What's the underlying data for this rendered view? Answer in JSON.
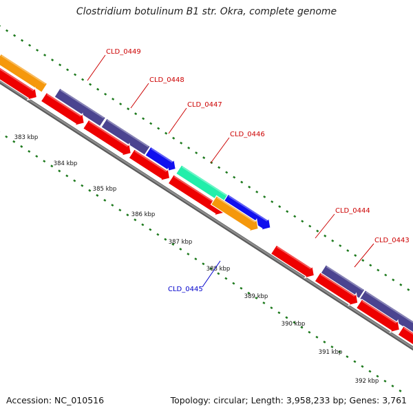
{
  "title": "Clostridium botulinum B1 str. Okra, complete genome",
  "footer": {
    "accession": "Accession: NC_010516",
    "stats": "Topology: circular; Length: 3,958,233 bp; Genes: 3,761"
  },
  "colors": {
    "red": "#ee0000",
    "navy": "#4b4490",
    "blue": "#1010ee",
    "green": "#22eeaa",
    "orange": "#f5980c",
    "backbone": "#8c8c8c",
    "tick": "#1e7a1e",
    "label_red": "#cc0000",
    "label_blue": "#0000cc"
  },
  "kbp_labels": [
    "383 kbp",
    "384 kbp",
    "385 kbp",
    "386 kbp",
    "387 kbp",
    "388 kbp",
    "389 kbp",
    "390 kbp",
    "391 kbp",
    "392 kbp"
  ],
  "gene_labels": [
    "CLD_0449",
    "CLD_0448",
    "CLD_0447",
    "CLD_0446",
    "CLD_0444",
    "CLD_0443",
    "CLD_0445"
  ]
}
